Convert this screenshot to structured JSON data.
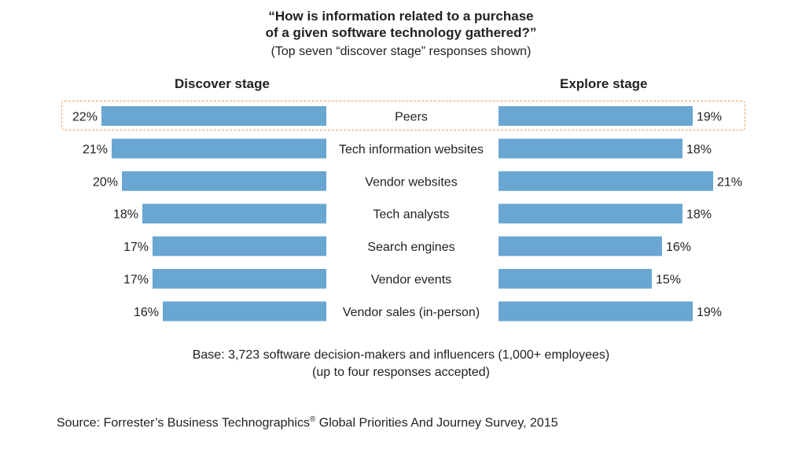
{
  "header": {
    "title_line1": "“How is information related to a purchase",
    "title_line2": "of a given software technology gathered?”",
    "subtitle": "(Top seven “discover stage” responses shown)"
  },
  "chart_data": {
    "type": "bar",
    "layout": "back-to-back horizontal bars",
    "categories": [
      "Peers",
      "Tech information websites",
      "Vendor websites",
      "Tech analysts",
      "Search engines",
      "Vendor events",
      "Vendor sales (in-person)"
    ],
    "series": [
      {
        "name": "Discover stage",
        "values": [
          22,
          21,
          20,
          18,
          17,
          17,
          16
        ],
        "value_labels": [
          "22%",
          "21%",
          "20%",
          "18%",
          "17%",
          "17%",
          "16%"
        ]
      },
      {
        "name": "Explore stage",
        "values": [
          19,
          18,
          21,
          18,
          16,
          15,
          19
        ],
        "value_labels": [
          "19%",
          "18%",
          "21%",
          "18%",
          "16%",
          "15%",
          "19%"
        ]
      }
    ],
    "unit": "%",
    "highlighted_category": "Peers",
    "bar_color": "#6aa6d2"
  },
  "footer": {
    "base_line1": "Base: 3,723 software decision-makers and influencers (1,000+ employees)",
    "base_line2": "(up to four responses accepted)",
    "source_prefix": "Source: Forrester’s Business Technographics",
    "source_mark": "®",
    "source_suffix": " Global Priorities And Journey Survey, 2015"
  },
  "colors": {
    "bar": "#6aa6d2",
    "highlight_border": "#f0a060",
    "text": "#222222"
  }
}
